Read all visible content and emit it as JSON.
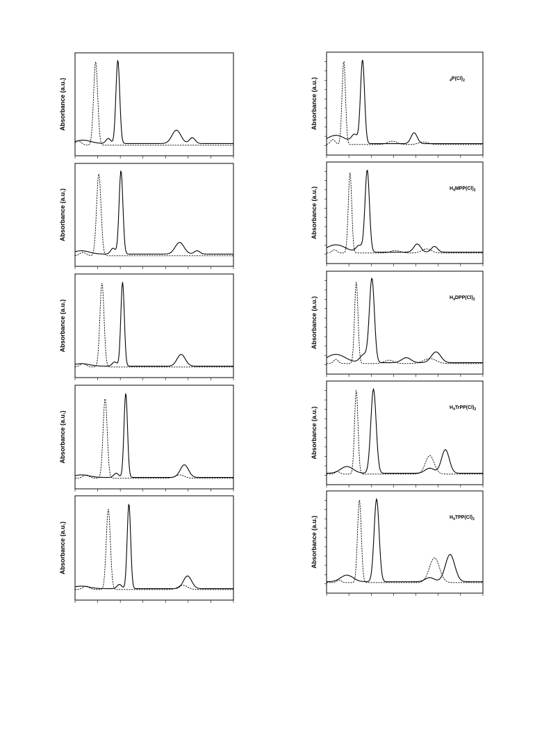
{
  "chart_data": [
    {
      "type": "line",
      "column": "left",
      "row": 0,
      "ylabel": "Absorbance (a.u.)",
      "series": [
        {
          "style": "solid",
          "peaks": [
            [
              0.27,
              1.0,
              0.012
            ],
            [
              0.21,
              0.06,
              0.015
            ],
            [
              0.64,
              0.16,
              0.028
            ],
            [
              0.74,
              0.07,
              0.018
            ],
            [
              0.05,
              0.04,
              0.05
            ]
          ],
          "baseline": 0.03
        },
        {
          "style": "dashed",
          "peaks": [
            [
              0.13,
              1.0,
              0.013
            ],
            [
              0.02,
              0.05,
              0.02
            ]
          ],
          "baseline": 0.01
        }
      ]
    },
    {
      "type": "line",
      "column": "left",
      "row": 1,
      "ylabel": "Absorbance (a.u.)",
      "series": [
        {
          "style": "solid",
          "peaks": [
            [
              0.29,
              1.0,
              0.012
            ],
            [
              0.24,
              0.07,
              0.015
            ],
            [
              0.66,
              0.14,
              0.028
            ],
            [
              0.77,
              0.04,
              0.018
            ],
            [
              0.04,
              0.04,
              0.05
            ]
          ],
          "baseline": 0.03
        },
        {
          "style": "dashed",
          "peaks": [
            [
              0.15,
              0.98,
              0.014
            ],
            [
              0.05,
              0.04,
              0.02
            ]
          ],
          "baseline": 0.01
        }
      ]
    },
    {
      "type": "line",
      "column": "left",
      "row": 2,
      "ylabel": "Absorbance (a.u.)",
      "series": [
        {
          "style": "solid",
          "peaks": [
            [
              0.3,
              1.0,
              0.011
            ],
            [
              0.25,
              0.05,
              0.015
            ],
            [
              0.67,
              0.14,
              0.026
            ],
            [
              0.04,
              0.03,
              0.05
            ]
          ],
          "baseline": 0.02
        },
        {
          "style": "dashed",
          "peaks": [
            [
              0.17,
              1.0,
              0.013
            ],
            [
              0.05,
              0.04,
              0.02
            ]
          ],
          "baseline": 0.01
        }
      ]
    },
    {
      "type": "line",
      "column": "left",
      "row": 3,
      "ylabel": "Absorbance (a.u.)",
      "series": [
        {
          "style": "solid",
          "peaks": [
            [
              0.32,
              1.0,
              0.011
            ],
            [
              0.26,
              0.05,
              0.015
            ],
            [
              0.69,
              0.15,
              0.026
            ],
            [
              0.04,
              0.03,
              0.05
            ]
          ],
          "baseline": 0.02
        },
        {
          "style": "dashed",
          "peaks": [
            [
              0.19,
              0.95,
              0.013
            ],
            [
              0.07,
              0.04,
              0.02
            ],
            [
              0.66,
              0.04,
              0.03
            ]
          ],
          "baseline": 0.01
        }
      ]
    },
    {
      "type": "line",
      "column": "left",
      "row": 4,
      "ylabel": "Absorbance (a.u.)",
      "series": [
        {
          "style": "solid",
          "peaks": [
            [
              0.34,
              1.0,
              0.011
            ],
            [
              0.28,
              0.05,
              0.015
            ],
            [
              0.71,
              0.15,
              0.026
            ],
            [
              0.04,
              0.03,
              0.05
            ]
          ],
          "baseline": 0.02
        },
        {
          "style": "dashed",
          "peaks": [
            [
              0.21,
              0.95,
              0.013
            ],
            [
              0.07,
              0.04,
              0.02
            ],
            [
              0.68,
              0.05,
              0.03
            ]
          ],
          "baseline": 0.01
        }
      ]
    },
    {
      "type": "line",
      "column": "right",
      "row": 0,
      "ylabel": "Absorbance (a.u.)",
      "label_main": "P(Cl)",
      "label_pre": "4",
      "label_sub": "2",
      "series": [
        {
          "style": "solid",
          "peaks": [
            [
              0.23,
              1.0,
              0.013
            ],
            [
              0.18,
              0.1,
              0.02
            ],
            [
              0.56,
              0.13,
              0.02
            ],
            [
              0.06,
              0.1,
              0.06
            ]
          ],
          "baseline": 0.02
        },
        {
          "style": "dashed",
          "peaks": [
            [
              0.11,
              1.0,
              0.011
            ],
            [
              0.04,
              0.06,
              0.015
            ],
            [
              0.42,
              0.04,
              0.03
            ],
            [
              0.62,
              0.03,
              0.03
            ]
          ],
          "baseline": 0.01
        }
      ]
    },
    {
      "type": "line",
      "column": "right",
      "row": 1,
      "ylabel": "Absorbance (a.u.)",
      "label_main": "MPP(Cl)",
      "label_pre": "H",
      "label_pre_sub": "4",
      "label_sub": "2",
      "series": [
        {
          "style": "solid",
          "peaks": [
            [
              0.26,
              1.0,
              0.014
            ],
            [
              0.21,
              0.08,
              0.02
            ],
            [
              0.58,
              0.1,
              0.022
            ],
            [
              0.69,
              0.07,
              0.02
            ],
            [
              0.06,
              0.09,
              0.06
            ]
          ],
          "baseline": 0.02
        },
        {
          "style": "dashed",
          "peaks": [
            [
              0.15,
              0.98,
              0.011
            ],
            [
              0.05,
              0.04,
              0.015
            ],
            [
              0.44,
              0.03,
              0.03
            ],
            [
              0.64,
              0.05,
              0.03
            ]
          ],
          "baseline": 0.01
        }
      ]
    },
    {
      "type": "line",
      "column": "right",
      "row": 2,
      "ylabel": "Absorbance (a.u.)",
      "label_main": "DPP(Cl)",
      "label_pre": "H",
      "label_pre_sub": "4",
      "label_sub": "2",
      "series": [
        {
          "style": "solid",
          "peaks": [
            [
              0.29,
              1.0,
              0.016
            ],
            [
              0.24,
              0.1,
              0.025
            ],
            [
              0.51,
              0.06,
              0.03
            ],
            [
              0.7,
              0.13,
              0.03
            ],
            [
              0.06,
              0.1,
              0.06
            ]
          ],
          "baseline": 0.02
        },
        {
          "style": "dashed",
          "peaks": [
            [
              0.19,
              0.98,
              0.011
            ],
            [
              0.06,
              0.05,
              0.015
            ],
            [
              0.4,
              0.04,
              0.03
            ],
            [
              0.66,
              0.06,
              0.04
            ]
          ],
          "baseline": 0.01
        }
      ]
    },
    {
      "type": "line",
      "column": "right",
      "row": 3,
      "ylabel": "Absorbance (a.u.)",
      "label_main": "TrPP(Cl)",
      "label_pre": "H",
      "label_pre_sub": "4",
      "label_sub": "2",
      "series": [
        {
          "style": "solid",
          "peaks": [
            [
              0.3,
              1.0,
              0.017
            ],
            [
              0.76,
              0.28,
              0.025
            ],
            [
              0.66,
              0.06,
              0.03
            ],
            [
              0.13,
              0.08,
              0.04
            ]
          ],
          "baseline": 0.02
        },
        {
          "style": "dashed",
          "peaks": [
            [
              0.19,
              1.0,
              0.011
            ],
            [
              0.66,
              0.22,
              0.028
            ],
            [
              0.07,
              0.03,
              0.015
            ]
          ],
          "baseline": 0.01
        }
      ]
    },
    {
      "type": "line",
      "column": "right",
      "row": 4,
      "ylabel": "Absorbance (a.u.)",
      "label_main": "TPP(Cl)",
      "label_pre": "H",
      "label_pre_sub": "4",
      "label_sub": "2",
      "series": [
        {
          "style": "solid",
          "peaks": [
            [
              0.32,
              1.0,
              0.016
            ],
            [
              0.79,
              0.33,
              0.03
            ],
            [
              0.66,
              0.05,
              0.03
            ],
            [
              0.13,
              0.08,
              0.04
            ]
          ],
          "baseline": 0.02
        },
        {
          "style": "dashed",
          "peaks": [
            [
              0.21,
              1.0,
              0.012
            ],
            [
              0.69,
              0.3,
              0.032
            ],
            [
              0.08,
              0.03,
              0.015
            ]
          ],
          "baseline": 0.01
        }
      ]
    }
  ]
}
